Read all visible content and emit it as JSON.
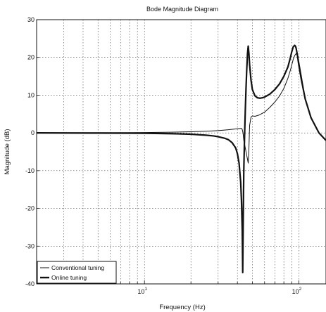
{
  "chart_data": {
    "type": "line",
    "title": "Bode Magnitude Diagram",
    "xlabel": "Frequency (Hz)",
    "ylabel": "Magnitude (dB)",
    "xscale": "log",
    "xlim": [
      2,
      150
    ],
    "ylim": [
      -40,
      30
    ],
    "grid": true,
    "legend_position": "bottom-left",
    "y_ticks": [
      30,
      20,
      10,
      0,
      -10,
      -20,
      -30,
      -40
    ],
    "y_tick_labels": [
      "30",
      "20",
      "10",
      "0",
      "-10",
      "-20",
      "-30",
      "-40"
    ],
    "x_ticks": [
      10,
      100
    ],
    "x_tick_labels": [
      {
        "base": "10",
        "exp": "1"
      },
      {
        "base": "10",
        "exp": "2"
      }
    ],
    "series": [
      {
        "name": "Conventional tuning",
        "style": "thin",
        "color": "#111111",
        "x": [
          2,
          5,
          10,
          15,
          20,
          25,
          30,
          35,
          38,
          40,
          41,
          42,
          42.5,
          43,
          43.5,
          44,
          45,
          46,
          47,
          47.5,
          48,
          49,
          50,
          52,
          55,
          60,
          65,
          70,
          75,
          80,
          85,
          88,
          90,
          92,
          94,
          96,
          98,
          100,
          104,
          110,
          120,
          135,
          150
        ],
        "y": [
          0,
          0.05,
          0.1,
          0.2,
          0.3,
          0.45,
          0.6,
          0.85,
          1,
          1.1,
          1.15,
          1.2,
          1.2,
          0.9,
          0,
          -2,
          -4,
          -6,
          -8,
          -4,
          2,
          4.2,
          4.5,
          4.4,
          4.7,
          5.5,
          6.8,
          8.2,
          9.8,
          11.8,
          14.5,
          16.5,
          18,
          19.5,
          20.5,
          21,
          20.5,
          19,
          15,
          9,
          4,
          0,
          -2
        ]
      },
      {
        "name": "Online tuning",
        "style": "thick",
        "color": "#111111",
        "x": [
          2,
          5,
          10,
          15,
          20,
          25,
          28,
          30,
          33,
          35,
          37,
          39,
          40,
          41,
          42,
          42.5,
          43,
          43.3,
          43.6,
          44,
          44.5,
          45,
          45.5,
          46,
          46.5,
          47,
          47.5,
          48,
          49,
          50,
          52,
          54,
          56,
          58,
          60,
          65,
          70,
          75,
          80,
          85,
          88,
          90,
          92,
          94,
          95,
          96,
          98,
          100,
          104,
          110,
          120,
          135,
          150
        ],
        "y": [
          0,
          -0.05,
          -0.1,
          -0.2,
          -0.35,
          -0.6,
          -0.8,
          -1,
          -1.4,
          -1.8,
          -2.6,
          -4,
          -5.5,
          -8,
          -13,
          -18,
          -26,
          -37,
          -24,
          -10,
          -1,
          6,
          12,
          17,
          21,
          23,
          21,
          18,
          14,
          11.5,
          9.8,
          9.3,
          9.2,
          9.3,
          9.5,
          10.3,
          11.5,
          13,
          15,
          17.5,
          19.8,
          21.5,
          22.8,
          23.2,
          23,
          22.5,
          20.5,
          18,
          14,
          9,
          4,
          0,
          -2
        ]
      }
    ]
  }
}
